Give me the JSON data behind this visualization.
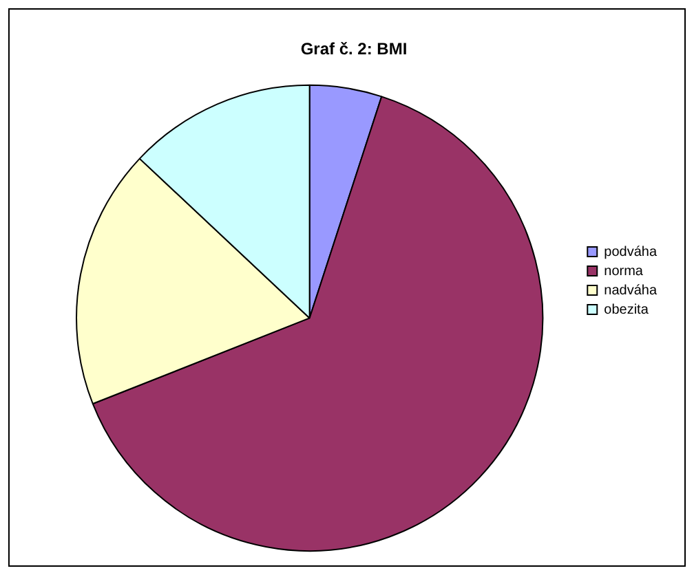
{
  "chart_data": {
    "type": "pie",
    "title": "Graf č. 2: BMI",
    "categories": [
      "podváha",
      "norma",
      "nadváha",
      "obezita"
    ],
    "values": [
      5,
      64,
      18,
      13
    ],
    "colors": [
      "#9999ff",
      "#993366",
      "#ffffcc",
      "#ccffff"
    ],
    "legend": "right"
  }
}
